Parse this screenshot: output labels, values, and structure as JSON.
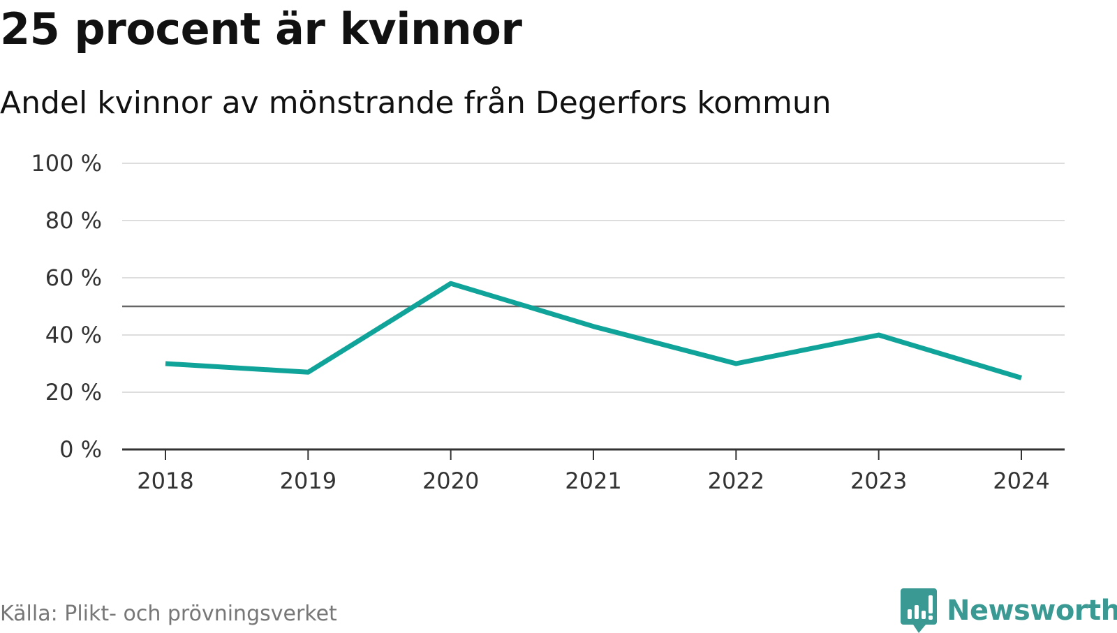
{
  "header": {
    "title": "25 procent är kvinnor",
    "subtitle": "Andel kvinnor av mönstrande från Degerfors kommun"
  },
  "footer": {
    "source": "Källa: Plikt- och prövningsverket",
    "logo_text": "Newsworthy"
  },
  "colors": {
    "series": "#0fa399",
    "grid": "#dddddd",
    "reference_line": "#666666",
    "axis": "#333333",
    "logo": "#3a9a93"
  },
  "icons": {
    "logo": "newsworthy-bar-chart-speech-bubble-icon"
  },
  "chart_data": {
    "type": "line",
    "title": "25 procent är kvinnor",
    "subtitle": "Andel kvinnor av mönstrande från Degerfors kommun",
    "xlabel": "",
    "ylabel": "",
    "x": [
      "2018",
      "2019",
      "2020",
      "2021",
      "2022",
      "2023",
      "2024"
    ],
    "series": [
      {
        "values": [
          30,
          27,
          58,
          43,
          30,
          40,
          25
        ]
      }
    ],
    "ylim": [
      0,
      100
    ],
    "yticks": [
      0,
      20,
      40,
      60,
      80,
      100
    ],
    "ytick_labels": [
      "0 %",
      "20 %",
      "40 %",
      "60 %",
      "80 %",
      "100 %"
    ],
    "reference_line": 50,
    "grid": true,
    "legend": "none"
  }
}
